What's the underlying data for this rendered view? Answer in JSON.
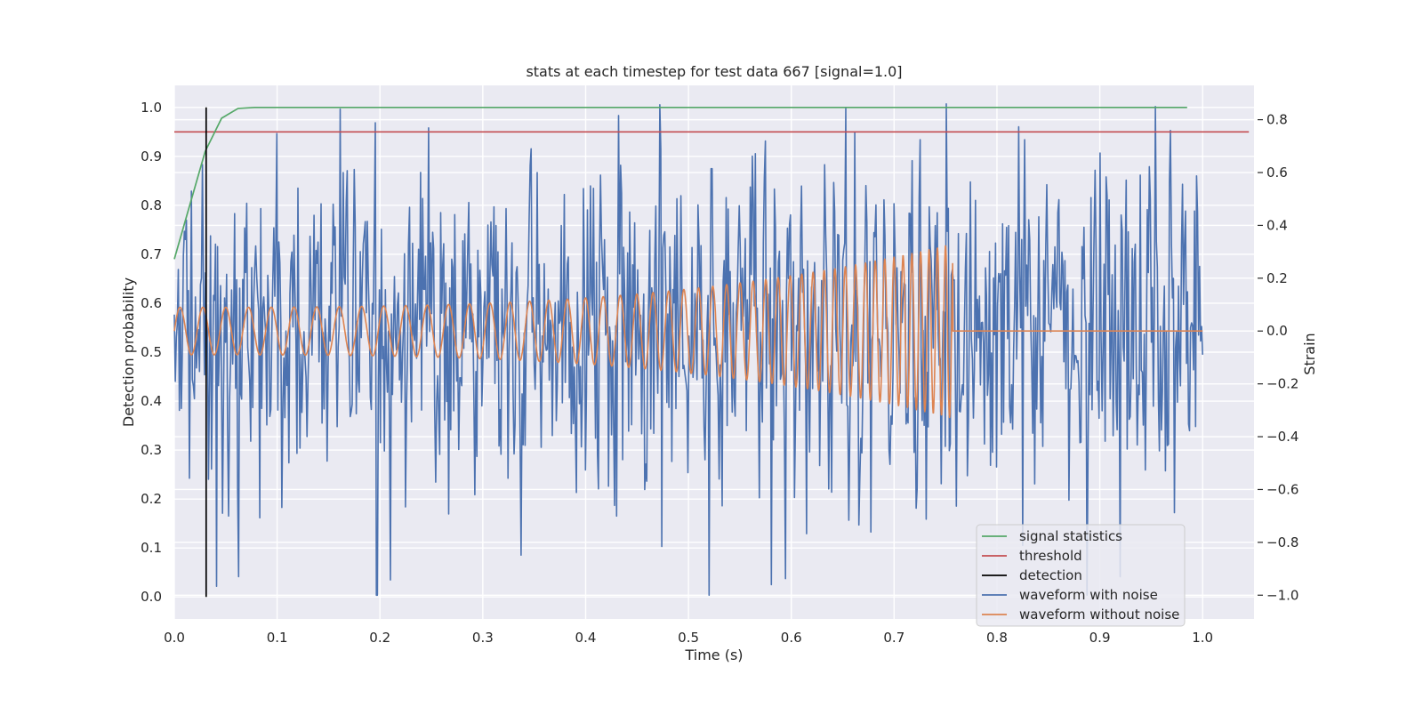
{
  "chart_data": {
    "type": "line",
    "title": "stats at each timestep for test data 667 [signal=1.0]",
    "xlabel": "Time (s)",
    "ylabel_left": "Detection probability",
    "ylabel_right": "Strain",
    "xlim": [
      0.0,
      1.05
    ],
    "ylim_left": [
      -0.045,
      1.045
    ],
    "ylim_right": [
      -1.09,
      0.93
    ],
    "x_ticks": [
      "0.0",
      "0.1",
      "0.2",
      "0.3",
      "0.4",
      "0.5",
      "0.6",
      "0.7",
      "0.8",
      "0.9",
      "1.0"
    ],
    "y_left_ticks": [
      "0.0",
      "0.1",
      "0.2",
      "0.3",
      "0.4",
      "0.5",
      "0.6",
      "0.7",
      "0.8",
      "0.9",
      "1.0"
    ],
    "y_right_ticks": [
      "−1.0",
      "−0.8",
      "−0.6",
      "−0.4",
      "−0.2",
      "0.0",
      "0.2",
      "0.4",
      "0.6",
      "0.8"
    ],
    "grid": true,
    "background": "#eaeaf2",
    "legend_position": "lower right",
    "series": [
      {
        "name": "signal statistics",
        "axis": "left",
        "color": "#55a868",
        "x": [
          0.0,
          0.015,
          0.03,
          0.046,
          0.062,
          0.078,
          0.093,
          0.2,
          0.4,
          0.6,
          0.8,
          0.985
        ],
        "y": [
          0.69,
          0.8,
          0.91,
          0.978,
          0.998,
          1.0,
          1.0,
          1.0,
          1.0,
          1.0,
          1.0,
          1.0
        ]
      },
      {
        "name": "threshold",
        "axis": "left",
        "color": "#c44e52",
        "x": [
          0.0,
          1.045
        ],
        "y": [
          0.95,
          0.95
        ]
      },
      {
        "name": "detection",
        "axis": "left",
        "color": "#000000",
        "x": [
          0.031,
          0.031
        ],
        "y": [
          0.0,
          1.0
        ]
      },
      {
        "name": "waveform with noise",
        "axis": "right",
        "color": "#4c72b0",
        "x_range": [
          0.0,
          1.0
        ],
        "n_points": 1024,
        "noise_std": 0.3,
        "peaks": [
          {
            "x": 0.161,
            "y": 0.84
          },
          {
            "x": 0.197,
            "y": -1.0
          },
          {
            "x": 0.581,
            "y": -0.96
          },
          {
            "x": 0.92,
            "y": -0.93
          },
          {
            "x": 0.954,
            "y": 0.85
          }
        ]
      },
      {
        "name": "waveform without noise",
        "axis": "right",
        "color": "#dd8452",
        "x_range": [
          0.0,
          1.0
        ],
        "chirp_end": 0.757,
        "start_amplitude": 0.09,
        "end_amplitude": 0.33,
        "start_freq_hz": 45,
        "end_freq_hz": 130
      }
    ]
  }
}
